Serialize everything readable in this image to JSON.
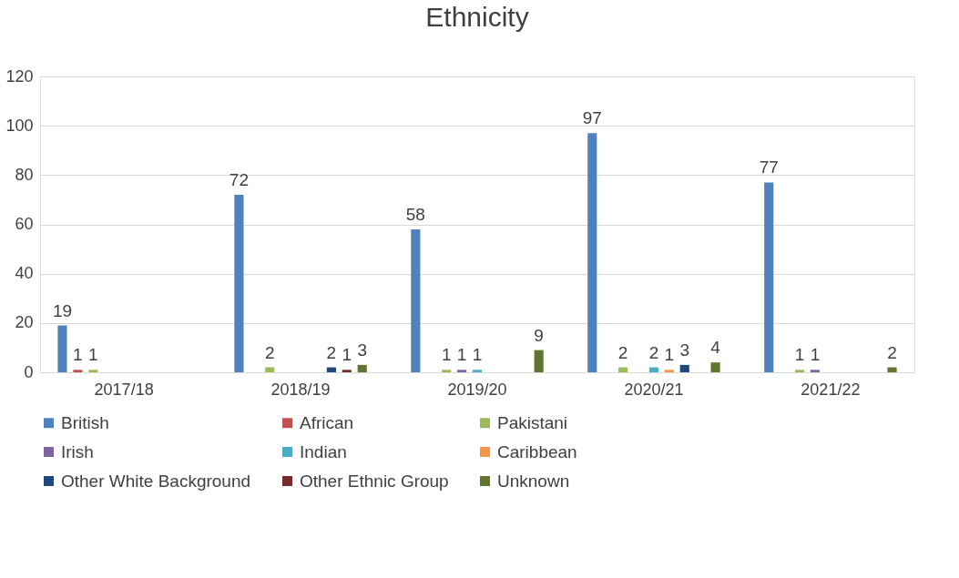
{
  "chart_data": {
    "type": "bar",
    "title": "Ethnicity",
    "categories": [
      "2017/18",
      "2018/19",
      "2019/20",
      "2020/21",
      "2021/22"
    ],
    "series": [
      {
        "name": "British",
        "color": "#4f81bd",
        "values": [
          19,
          72,
          58,
          97,
          77
        ]
      },
      {
        "name": "African",
        "color": "#c0504d",
        "values": [
          1,
          null,
          null,
          null,
          null
        ]
      },
      {
        "name": "Pakistani",
        "color": "#9bbb59",
        "values": [
          1,
          2,
          1,
          2,
          1
        ]
      },
      {
        "name": "Irish",
        "color": "#8064a2",
        "values": [
          null,
          null,
          1,
          null,
          1
        ]
      },
      {
        "name": "Indian",
        "color": "#4bacc6",
        "values": [
          null,
          null,
          1,
          2,
          null
        ]
      },
      {
        "name": "Caribbean",
        "color": "#f79646",
        "values": [
          null,
          null,
          null,
          1,
          null
        ]
      },
      {
        "name": "Other White Background",
        "color": "#1f497d",
        "values": [
          null,
          2,
          null,
          3,
          null
        ]
      },
      {
        "name": "Other Ethnic Group",
        "color": "#772c2a",
        "values": [
          null,
          1,
          null,
          null,
          null
        ]
      },
      {
        "name": "Unknown",
        "color": "#5f7530",
        "values": [
          null,
          3,
          9,
          4,
          2
        ]
      }
    ],
    "ylim": [
      0,
      120
    ],
    "yticks": [
      0,
      20,
      40,
      60,
      80,
      100,
      120
    ],
    "grid": "y",
    "legend": "bottom",
    "data_labels": true
  }
}
